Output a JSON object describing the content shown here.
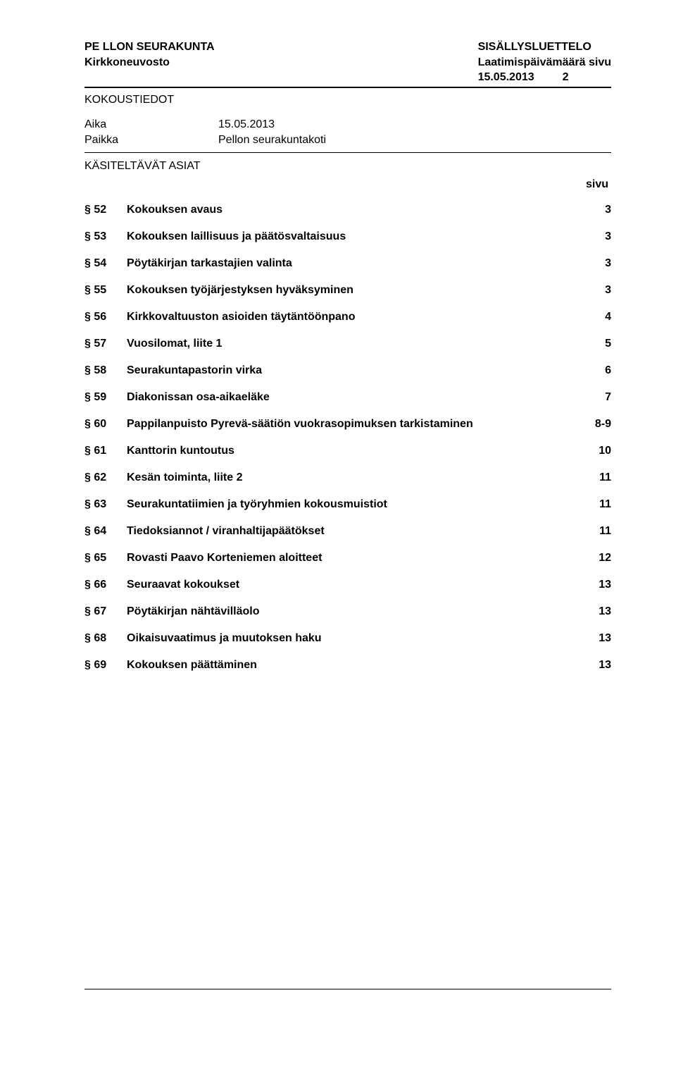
{
  "header": {
    "org_line1": "PE LLON SEURAKUNTA",
    "org_line2": "Kirkkoneuvosto",
    "doc_line1": "SISÄLLYSLUETTELO",
    "doc_line2": "Laatimispäivämäärä sivu",
    "doc_line3": "15.05.2013",
    "doc_page": "2"
  },
  "meeting": {
    "section": "KOKOUSTIEDOT",
    "row1_label": "Aika",
    "row1_value": "15.05.2013",
    "row2_label": "Paikka",
    "row2_value": "Pellon seurakuntakoti"
  },
  "toc_header": "KÄSITELTÄVÄT ASIAT",
  "sivu_label": "sivu",
  "items": [
    {
      "num": "§ 52",
      "title": "Kokouksen avaus",
      "page": "3"
    },
    {
      "num": "§ 53",
      "title": "Kokouksen laillisuus ja päätösvaltaisuus",
      "page": "3"
    },
    {
      "num": "§ 54",
      "title": "Pöytäkirjan tarkastajien valinta",
      "page": "3"
    },
    {
      "num": "§ 55",
      "title": "Kokouksen työjärjestyksen hyväksyminen",
      "page": "3"
    },
    {
      "num": "§ 56",
      "title": "Kirkkovaltuuston asioiden täytäntöönpano",
      "page": "4"
    },
    {
      "num": "§ 57",
      "title": "Vuosilomat, liite 1",
      "page": "5"
    },
    {
      "num": "§ 58",
      "title": "Seurakuntapastorin virka",
      "page": "6"
    },
    {
      "num": "§ 59",
      "title": "Diakonissan osa-aikaeläke",
      "page": "7"
    },
    {
      "num": "§ 60",
      "title": "Pappilanpuisto Pyrevä-säätiön vuokrasopimuksen tarkistaminen",
      "page": "8-9"
    },
    {
      "num": "§ 61",
      "title": "Kanttorin kuntoutus",
      "page": "10"
    },
    {
      "num": "§ 62",
      "title": "Kesän toiminta, liite 2",
      "page": "11"
    },
    {
      "num": "§ 63",
      "title": "Seurakuntatiimien ja työryhmien kokousmuistiot",
      "page": "11"
    },
    {
      "num": "§ 64",
      "title": "Tiedoksiannot / viranhaltijapäätökset",
      "page": "11"
    },
    {
      "num": "§ 65",
      "title": "Rovasti Paavo Korteniemen aloitteet",
      "page": "12"
    },
    {
      "num": "§ 66",
      "title": "Seuraavat kokoukset",
      "page": "13"
    },
    {
      "num": "§ 67",
      "title": "Pöytäkirjan nähtävilläolo",
      "page": "13"
    },
    {
      "num": "§ 68",
      "title": "Oikaisuvaatimus ja muutoksen haku",
      "page": "13"
    },
    {
      "num": "§ 69",
      "title": "Kokouksen päättäminen",
      "page": "13"
    }
  ],
  "style": {
    "font_family": "Arial",
    "base_fontsize_pt": 12,
    "text_color": "#000000",
    "background_color": "#ffffff",
    "rule_color": "#000000"
  }
}
